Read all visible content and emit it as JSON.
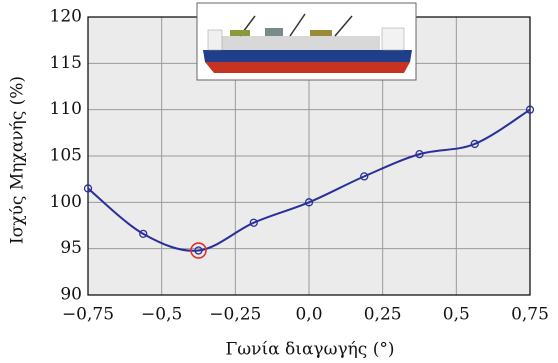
{
  "chart_data": {
    "type": "line",
    "x_label": "Γωνία διαγωγής (°)",
    "y_label": "Ισχύς Μηχανής (%)",
    "x": [
      -0.75,
      -0.5625,
      -0.375,
      -0.1875,
      0,
      0.1875,
      0.375,
      0.5625,
      0.75
    ],
    "series": [
      {
        "color": "#2a2f9a",
        "values": [
          101.5,
          96.6,
          94.8,
          97.8,
          100.0,
          102.8,
          105.2,
          106.3,
          110.0
        ],
        "highlight": {
          "index": 2,
          "color": "#e0302a"
        }
      }
    ],
    "xlim": [
      -0.75,
      0.75
    ],
    "xticks": [
      {
        "value": -0.75,
        "label": "−0,75"
      },
      {
        "value": -0.5,
        "label": "−0,5"
      },
      {
        "value": -0.25,
        "label": "−0,25"
      },
      {
        "value": 0,
        "label": "0,0"
      },
      {
        "value": 0.25,
        "label": "0,25"
      },
      {
        "value": 0.5,
        "label": "0,5"
      },
      {
        "value": 0.75,
        "label": "0,75"
      }
    ],
    "ylim": [
      90,
      120
    ],
    "yticks": [
      90,
      95,
      100,
      105,
      110,
      115,
      120
    ],
    "grid": true
  }
}
